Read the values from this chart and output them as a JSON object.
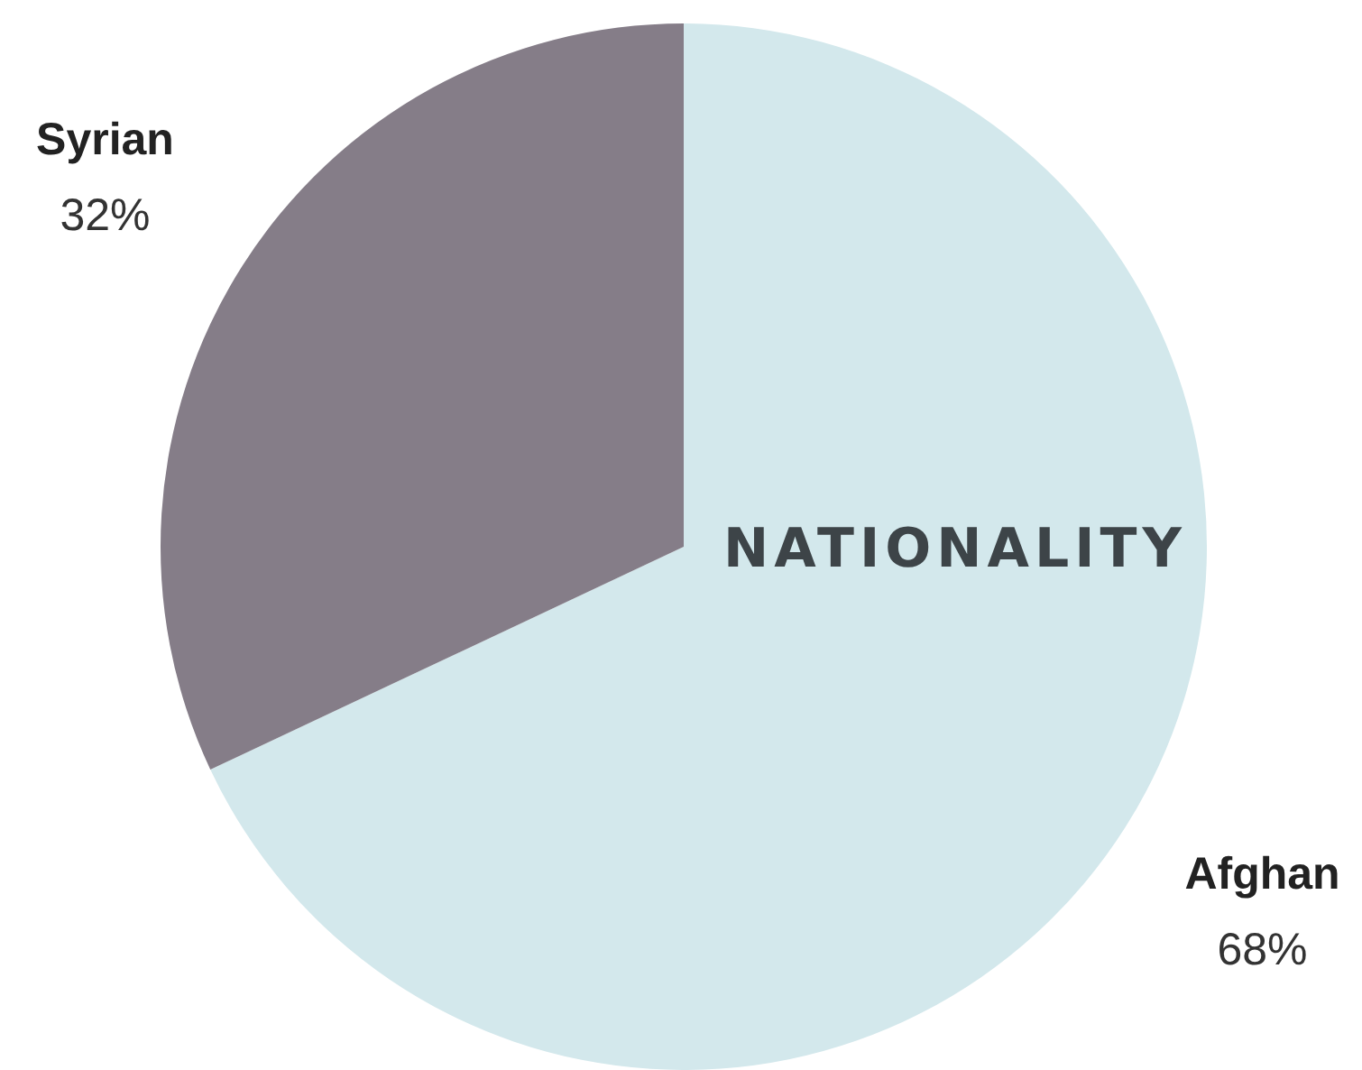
{
  "chart_data": {
    "type": "pie",
    "title": "NATIONALITY",
    "categories": [
      "Afghan",
      "Syrian"
    ],
    "values": [
      68,
      32
    ],
    "colors": [
      "#d3e8ec",
      "#857d88"
    ],
    "value_labels": [
      "68%",
      "32%"
    ],
    "legend": false
  }
}
